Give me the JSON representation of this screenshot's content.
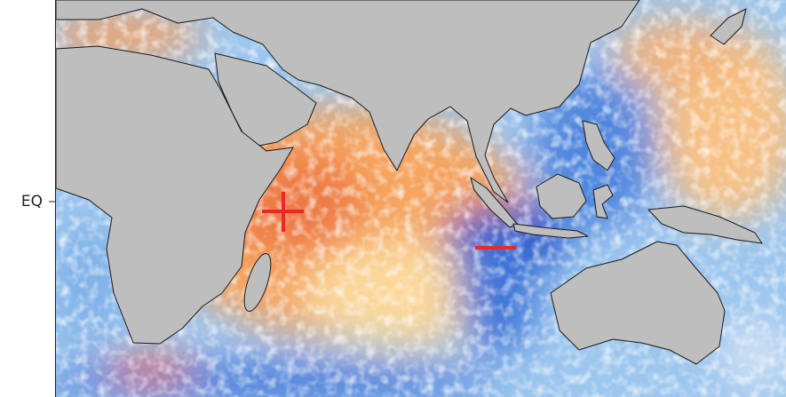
{
  "map": {
    "y_axis_label": "EQ"
  }
}
